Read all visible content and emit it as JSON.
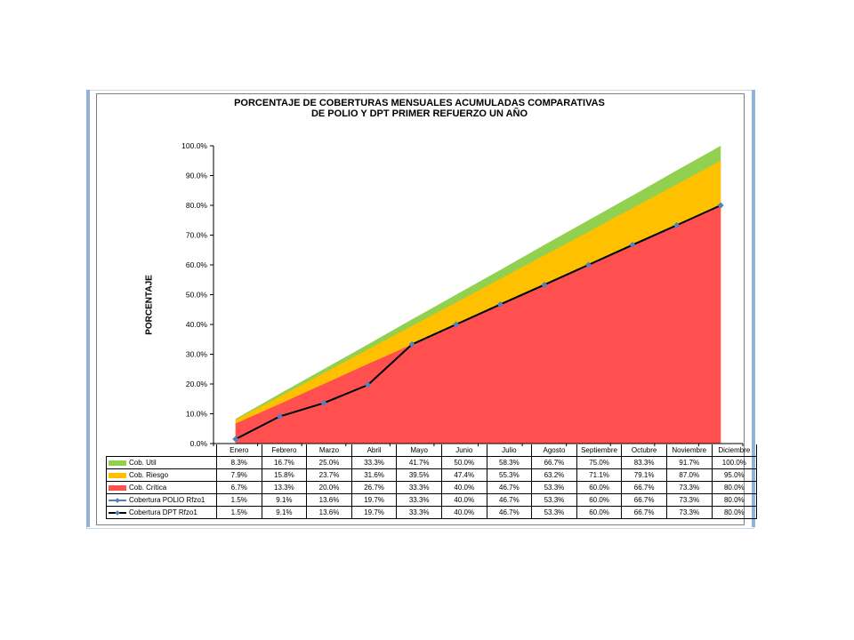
{
  "colors": {
    "util": "#92d050",
    "riesgo": "#ffc000",
    "critica": "#ff4f4f",
    "polio_line": "#4f81bd",
    "dpt_line": "#000000",
    "marker": "#4f81bd"
  },
  "chart_data": {
    "type": "area",
    "title": [
      "PORCENTAJE DE COBERTURAS MENSUALES ACUMULADAS COMPARATIVAS",
      "DE POLIO Y DPT PRIMER REFUERZO UN AÑO"
    ],
    "xlabel": "",
    "ylabel": "PORCENTAJE",
    "ylim": [
      0,
      100
    ],
    "yticks": [
      "0.0%",
      "10.0%",
      "20.0%",
      "30.0%",
      "40.0%",
      "50.0%",
      "60.0%",
      "70.0%",
      "80.0%",
      "90.0%",
      "100.0%"
    ],
    "categories": [
      "Enero",
      "Febrero",
      "Marzo",
      "Abril",
      "Mayo",
      "Junio",
      "Julio",
      "Agosto",
      "Septiembre",
      "Octubre",
      "Noviembre",
      "Diciembre"
    ],
    "series": [
      {
        "name": "Cob. Util",
        "type": "area",
        "color_key": "util",
        "values": [
          8.3,
          16.7,
          25.0,
          33.3,
          41.7,
          50.0,
          58.3,
          66.7,
          75.0,
          83.3,
          91.7,
          100.0
        ],
        "labels": [
          "8.3%",
          "16.7%",
          "25.0%",
          "33.3%",
          "41.7%",
          "50.0%",
          "58.3%",
          "66.7%",
          "75.0%",
          "83.3%",
          "91.7%",
          "100.0%"
        ]
      },
      {
        "name": "Cob. Riesgo",
        "type": "area",
        "color_key": "riesgo",
        "values": [
          7.9,
          15.8,
          23.7,
          31.6,
          39.5,
          47.4,
          55.3,
          63.2,
          71.1,
          79.1,
          87.0,
          95.0
        ],
        "labels": [
          "7.9%",
          "15.8%",
          "23.7%",
          "31.6%",
          "39.5%",
          "47.4%",
          "55.3%",
          "63.2%",
          "71.1%",
          "79.1%",
          "87.0%",
          "95.0%"
        ]
      },
      {
        "name": "Cob. Crítica",
        "type": "area",
        "color_key": "critica",
        "values": [
          6.7,
          13.3,
          20.0,
          26.7,
          33.3,
          40.0,
          46.7,
          53.3,
          60.0,
          66.7,
          73.3,
          80.0
        ],
        "labels": [
          "6.7%",
          "13.3%",
          "20.0%",
          "26.7%",
          "33.3%",
          "40.0%",
          "46.7%",
          "53.3%",
          "60.0%",
          "66.7%",
          "73.3%",
          "80.0%"
        ]
      },
      {
        "name": "Cobertura POLIO Rfzo1",
        "type": "line",
        "color_key": "polio_line",
        "values": [
          1.5,
          9.1,
          13.6,
          19.7,
          33.3,
          40.0,
          46.7,
          53.3,
          60.0,
          66.7,
          73.3,
          80.0
        ],
        "labels": [
          "1.5%",
          "9.1%",
          "13.6%",
          "19.7%",
          "33.3%",
          "40.0%",
          "46.7%",
          "53.3%",
          "60.0%",
          "66.7%",
          "73.3%",
          "80.0%"
        ]
      },
      {
        "name": "Cobertura DPT Rfzo1",
        "type": "line",
        "color_key": "dpt_line",
        "values": [
          1.5,
          9.1,
          13.6,
          19.7,
          33.3,
          40.0,
          46.7,
          53.3,
          60.0,
          66.7,
          73.3,
          80.0
        ],
        "labels": [
          "1.5%",
          "9.1%",
          "13.6%",
          "19.7%",
          "33.3%",
          "40.0%",
          "46.7%",
          "53.3%",
          "60.0%",
          "66.7%",
          "73.3%",
          "80.0%"
        ]
      }
    ],
    "grid": false,
    "legend_placement": "data-table"
  }
}
